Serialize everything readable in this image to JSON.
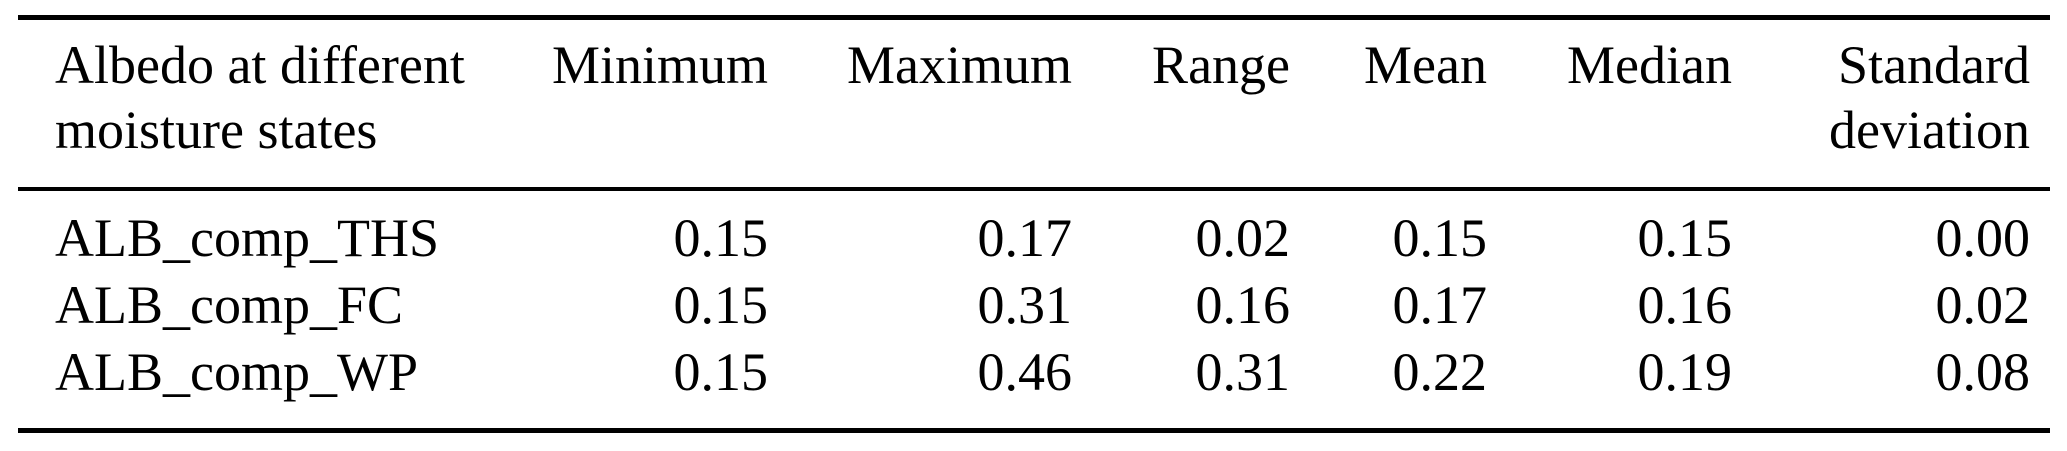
{
  "colors": {
    "background": "#ffffff",
    "text": "#000000",
    "rule": "#000000"
  },
  "table": {
    "columns": [
      {
        "id": "label",
        "line1": "Albedo at different",
        "line2": "moisture states"
      },
      {
        "id": "minimum",
        "line1": "Minimum",
        "line2": ""
      },
      {
        "id": "maximum",
        "line1": "Maximum",
        "line2": ""
      },
      {
        "id": "range",
        "line1": "Range",
        "line2": ""
      },
      {
        "id": "mean",
        "line1": "Mean",
        "line2": ""
      },
      {
        "id": "median",
        "line1": "Median",
        "line2": ""
      },
      {
        "id": "std",
        "line1": "Standard",
        "line2": "deviation"
      }
    ],
    "rows": [
      {
        "label": "ALB_comp_THS",
        "minimum": "0.15",
        "maximum": "0.17",
        "range": "0.02",
        "mean": "0.15",
        "median": "0.15",
        "std": "0.00"
      },
      {
        "label": "ALB_comp_FC",
        "minimum": "0.15",
        "maximum": "0.31",
        "range": "0.16",
        "mean": "0.17",
        "median": "0.16",
        "std": "0.02"
      },
      {
        "label": "ALB_comp_WP",
        "minimum": "0.15",
        "maximum": "0.46",
        "range": "0.31",
        "mean": "0.22",
        "median": "0.19",
        "std": "0.08"
      }
    ]
  },
  "chart_data": {
    "type": "table",
    "title": "Albedo at different moisture states",
    "columns": [
      "Albedo at different moisture states",
      "Minimum",
      "Maximum",
      "Range",
      "Mean",
      "Median",
      "Standard deviation"
    ],
    "rows": [
      [
        "ALB_comp_THS",
        0.15,
        0.17,
        0.02,
        0.15,
        0.15,
        0.0
      ],
      [
        "ALB_comp_FC",
        0.15,
        0.31,
        0.16,
        0.17,
        0.16,
        0.02
      ],
      [
        "ALB_comp_WP",
        0.15,
        0.46,
        0.31,
        0.22,
        0.19,
        0.08
      ]
    ]
  }
}
